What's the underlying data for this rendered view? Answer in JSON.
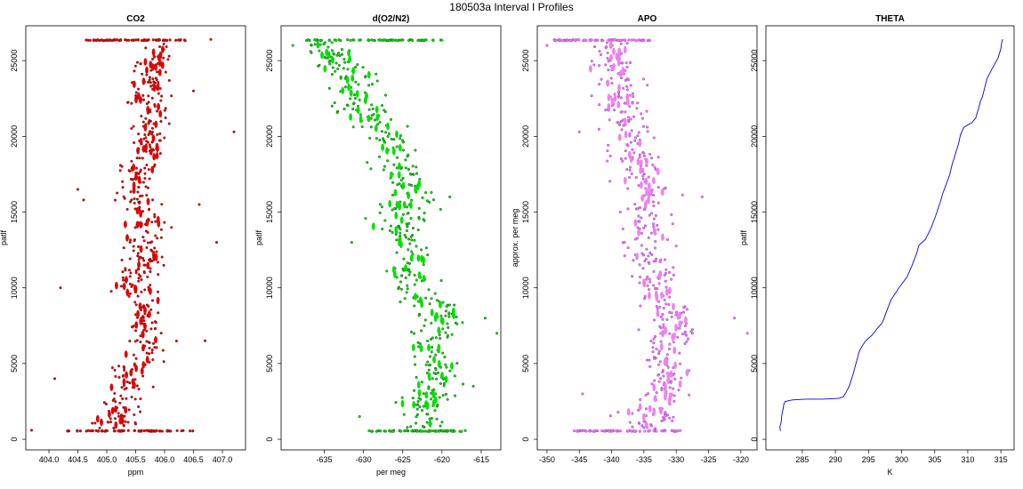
{
  "title": "180503a   Interval I Profiles",
  "chart_data": [
    {
      "type": "scatter",
      "title": "CO2",
      "xlabel": "ppm",
      "ylabel": "patlf",
      "xlim": [
        403.6,
        407.4
      ],
      "ylim": [
        -700,
        27300
      ],
      "xticks": [
        404.0,
        404.5,
        405.0,
        405.5,
        406.0,
        406.5,
        407.0
      ],
      "xtick_labels": [
        "404.0",
        "404.5",
        "405.0",
        "405.5",
        "406.0",
        "406.5",
        "407.0"
      ],
      "yticks": [
        0,
        5000,
        10000,
        15000,
        20000,
        25000
      ],
      "ytick_labels": [
        "0",
        "5000",
        "10000",
        "15000",
        "20000",
        "25000"
      ],
      "color": "#e00000",
      "edge_color": "#7a1010",
      "grid": false,
      "profile": [
        [
          600,
          405.1,
          0.35
        ],
        [
          2000,
          405.2,
          0.3
        ],
        [
          4000,
          405.35,
          0.3
        ],
        [
          6000,
          405.7,
          0.3
        ],
        [
          8000,
          405.6,
          0.3
        ],
        [
          10000,
          405.5,
          0.3
        ],
        [
          12000,
          405.6,
          0.3
        ],
        [
          14000,
          405.75,
          0.3
        ],
        [
          16000,
          405.5,
          0.3
        ],
        [
          18000,
          405.6,
          0.3
        ],
        [
          20000,
          405.8,
          0.3
        ],
        [
          22000,
          405.7,
          0.3
        ],
        [
          24000,
          405.8,
          0.3
        ],
        [
          26300,
          405.9,
          0.25
        ]
      ],
      "bands": [
        [
          550,
          404.3,
          406.5
        ],
        [
          26350,
          404.6,
          406.4
        ]
      ],
      "outliers": [
        [
          600,
          403.7
        ],
        [
          4000,
          404.1
        ],
        [
          10000,
          404.2
        ],
        [
          16500,
          404.5
        ],
        [
          15800,
          404.6
        ],
        [
          20300,
          407.2
        ],
        [
          13000,
          406.9
        ],
        [
          6500,
          406.7
        ],
        [
          26400,
          406.8
        ],
        [
          23000,
          406.5
        ],
        [
          15500,
          406.6
        ]
      ]
    },
    {
      "type": "scatter",
      "title": "d(O2/N2)",
      "xlabel": "per meg",
      "ylabel": "patlf",
      "xlim": [
        -640.5,
        -612.5
      ],
      "ylim": [
        -700,
        27300
      ],
      "xticks": [
        -635,
        -630,
        -625,
        -620,
        -615
      ],
      "xtick_labels": [
        "-635",
        "-630",
        "-625",
        "-620",
        "-615"
      ],
      "yticks": [
        0,
        5000,
        10000,
        15000,
        20000,
        25000
      ],
      "ytick_labels": [
        "0",
        "5000",
        "10000",
        "15000",
        "20000",
        "25000"
      ],
      "color": "#00e000",
      "edge_color": "#105510",
      "grid": false,
      "profile": [
        [
          600,
          -622.5,
          3.2
        ],
        [
          2000,
          -622.0,
          3.0
        ],
        [
          4000,
          -621.0,
          3.0
        ],
        [
          6000,
          -621.5,
          3.0
        ],
        [
          8000,
          -620.0,
          3.0
        ],
        [
          10000,
          -623.0,
          3.0
        ],
        [
          12000,
          -624.5,
          3.0
        ],
        [
          14000,
          -625.5,
          3.0
        ],
        [
          16000,
          -624.0,
          3.0
        ],
        [
          18000,
          -625.5,
          3.0
        ],
        [
          20000,
          -627.0,
          3.0
        ],
        [
          22000,
          -631.0,
          3.0
        ],
        [
          24000,
          -631.5,
          3.0
        ],
        [
          26300,
          -636.0,
          2.5
        ]
      ],
      "bands": [
        [
          550,
          -629.5,
          -617.0
        ],
        [
          26350,
          -637.5,
          -620.0
        ]
      ],
      "outliers": [
        [
          26000,
          -639.0
        ],
        [
          7000,
          -613.0
        ],
        [
          8000,
          -614.5
        ],
        [
          13000,
          -631.5
        ],
        [
          22000,
          -634.0
        ],
        [
          16000,
          -619.0
        ],
        [
          3500,
          -616.0
        ],
        [
          1500,
          -630.5
        ]
      ]
    },
    {
      "type": "scatter",
      "title": "APO",
      "xlabel": "",
      "ylabel": "approx. per meg",
      "xlim": [
        -351.5,
        -317.5
      ],
      "ylim": [
        -700,
        27300
      ],
      "xticks": [
        -350,
        -345,
        -340,
        -335,
        -330,
        -325,
        -320
      ],
      "xtick_labels": [
        "-350",
        "-345",
        "-340",
        "-335",
        "-330",
        "-325",
        "-320"
      ],
      "yticks": [
        0,
        5000,
        10000,
        15000,
        20000,
        25000
      ],
      "ytick_labels": [
        "0",
        "5000",
        "10000",
        "15000",
        "20000",
        "25000"
      ],
      "color": "#ee82ee",
      "edge_color": "#9932cc",
      "grid": false,
      "profile": [
        [
          600,
          -334.5,
          3.6
        ],
        [
          2000,
          -333.5,
          3.4
        ],
        [
          4000,
          -331.0,
          3.4
        ],
        [
          6000,
          -331.5,
          3.4
        ],
        [
          8000,
          -331.0,
          3.4
        ],
        [
          10000,
          -333.0,
          3.4
        ],
        [
          12000,
          -334.0,
          3.4
        ],
        [
          14000,
          -334.5,
          3.4
        ],
        [
          16000,
          -334.0,
          3.4
        ],
        [
          18000,
          -335.5,
          3.4
        ],
        [
          20000,
          -337.0,
          3.4
        ],
        [
          22000,
          -339.0,
          3.4
        ],
        [
          24000,
          -339.5,
          3.4
        ],
        [
          26300,
          -341.0,
          3.0
        ]
      ],
      "bands": [
        [
          550,
          -346.0,
          -329.0
        ],
        [
          26350,
          -349.0,
          -334.0
        ]
      ],
      "outliers": [
        [
          7000,
          -319.0
        ],
        [
          8000,
          -321.0
        ],
        [
          26000,
          -350.0
        ],
        [
          20300,
          -345.0
        ],
        [
          3000,
          -344.5
        ],
        [
          13000,
          -338.0
        ],
        [
          16000,
          -326.0
        ]
      ]
    },
    {
      "type": "line",
      "title": "THETA",
      "xlabel": "K",
      "ylabel": "patlf",
      "xlim": [
        279.5,
        317.0
      ],
      "ylim": [
        -700,
        27300
      ],
      "xticks": [
        285,
        290,
        295,
        300,
        305,
        310,
        315
      ],
      "xtick_labels": [
        "285",
        "290",
        "295",
        "300",
        "305",
        "310",
        "315"
      ],
      "yticks": [
        0,
        5000,
        10000,
        15000,
        20000,
        25000
      ],
      "ytick_labels": [
        "0",
        "5000",
        "10000",
        "15000",
        "20000",
        "25000"
      ],
      "color": "#0000ee",
      "grid": false,
      "x": [
        281.7,
        281.6,
        281.8,
        281.9,
        282.1,
        282.2,
        282.4,
        283.5,
        285.5,
        288.0,
        290.5,
        291.2,
        291.6,
        292.1,
        292.6,
        293.1,
        293.6,
        294.1,
        294.6,
        295.6,
        296.3,
        296.9,
        297.2,
        297.6,
        298.4,
        299.6,
        300.8,
        301.6,
        302.3,
        302.6,
        303.6,
        304.4,
        305.1,
        305.8,
        306.2,
        306.8,
        307.3,
        307.6,
        308.1,
        308.6,
        308.9,
        309.4,
        310.6,
        311.2,
        311.6,
        311.9,
        312.2,
        312.6,
        312.9,
        313.6,
        314.6,
        315.0,
        315.1,
        315.2,
        315.3
      ],
      "y": [
        550,
        800,
        1100,
        1600,
        2000,
        2300,
        2500,
        2600,
        2650,
        2650,
        2700,
        2800,
        3100,
        3500,
        4200,
        5000,
        5800,
        6200,
        6500,
        6900,
        7300,
        7600,
        7800,
        8300,
        9200,
        10000,
        10700,
        11500,
        12300,
        12800,
        13200,
        13900,
        14700,
        15600,
        16200,
        16900,
        17500,
        18100,
        18800,
        19500,
        20100,
        20600,
        20900,
        21200,
        21800,
        22300,
        22600,
        23300,
        23800,
        24400,
        25200,
        25800,
        26100,
        26350,
        26400
      ]
    }
  ]
}
